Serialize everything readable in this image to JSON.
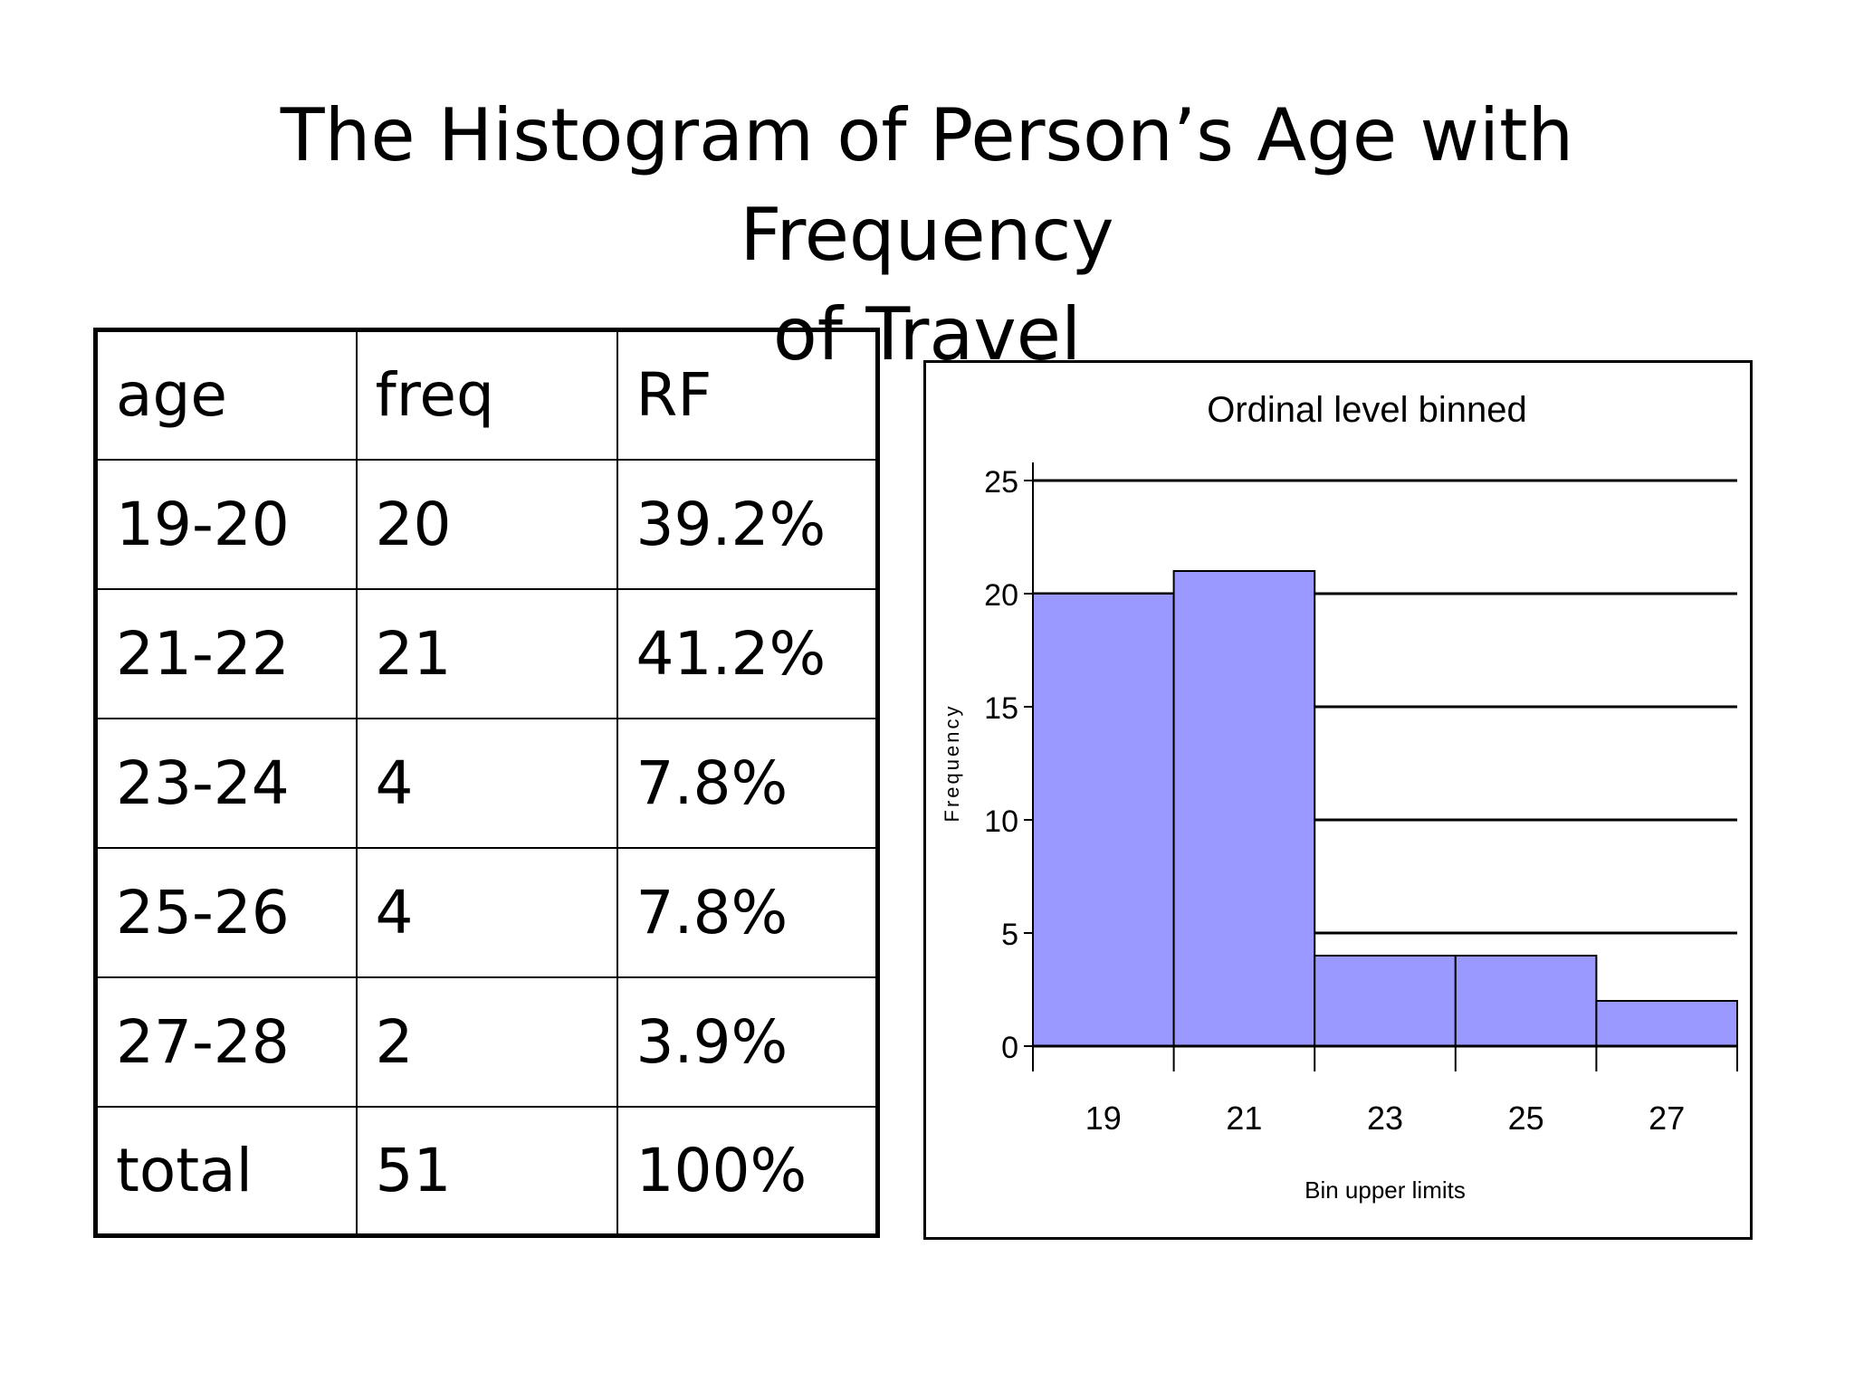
{
  "slide": {
    "title_line1": "The Histogram of Person’s Age with Frequency",
    "title_line2": "of Travel"
  },
  "table": {
    "headers": [
      "age",
      "freq",
      "RF"
    ],
    "rows": [
      [
        "19-20",
        "20",
        "39.2%"
      ],
      [
        "21-22",
        "21",
        "41.2%"
      ],
      [
        "23-24",
        "4",
        "7.8%"
      ],
      [
        "25-26",
        "4",
        "7.8%"
      ],
      [
        "27-28",
        "2",
        "3.9%"
      ],
      [
        "total",
        "51",
        "100%"
      ]
    ]
  },
  "chart_data": {
    "type": "bar",
    "title": "Ordinal level binned",
    "xlabel": "Bin upper limits",
    "ylabel": "Frequency",
    "categories": [
      "19",
      "21",
      "23",
      "25",
      "27"
    ],
    "values": [
      20,
      21,
      4,
      4,
      2
    ],
    "ylim": [
      0,
      25
    ],
    "yticks": [
      0,
      5,
      10,
      15,
      20,
      25
    ],
    "grid": true,
    "bar_color": "#9999ff",
    "legend": "none"
  }
}
